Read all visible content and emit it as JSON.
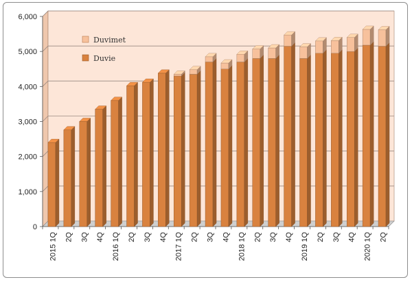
{
  "chart_data": {
    "type": "bar",
    "stacked": true,
    "categories": [
      "2015 1Q",
      "2Q",
      "3Q",
      "4Q",
      "2016 1Q",
      "2Q",
      "3Q",
      "4Q",
      "2017 1Q",
      "2Q",
      "3Q",
      "4Q",
      "2018 1Q",
      "2Q",
      "3Q",
      "4Q",
      "2019 1Q",
      "2Q",
      "3Q",
      "4Q",
      "2020 1Q",
      "2Q"
    ],
    "series": [
      {
        "name": "Duvie",
        "color": "#d9823f",
        "values": [
          2400,
          2760,
          3000,
          3350,
          3600,
          4020,
          4120,
          4380,
          4300,
          4350,
          4700,
          4500,
          4700,
          4800,
          4800,
          5150,
          4800,
          4950,
          4950,
          5000,
          5180,
          5150
        ]
      },
      {
        "name": "Duvimet",
        "color": "#f7c19c",
        "values": [
          0,
          0,
          0,
          0,
          0,
          0,
          0,
          0,
          50,
          130,
          150,
          170,
          220,
          270,
          300,
          320,
          330,
          350,
          360,
          400,
          450,
          470
        ]
      }
    ],
    "ylim": [
      0,
      6000
    ],
    "yticks": [
      "0",
      "1,000",
      "2,000",
      "3,000",
      "4,000",
      "5,000",
      "6,000"
    ],
    "grid": true,
    "legend_position": "top-left",
    "plot_background": "#fde6d8"
  }
}
